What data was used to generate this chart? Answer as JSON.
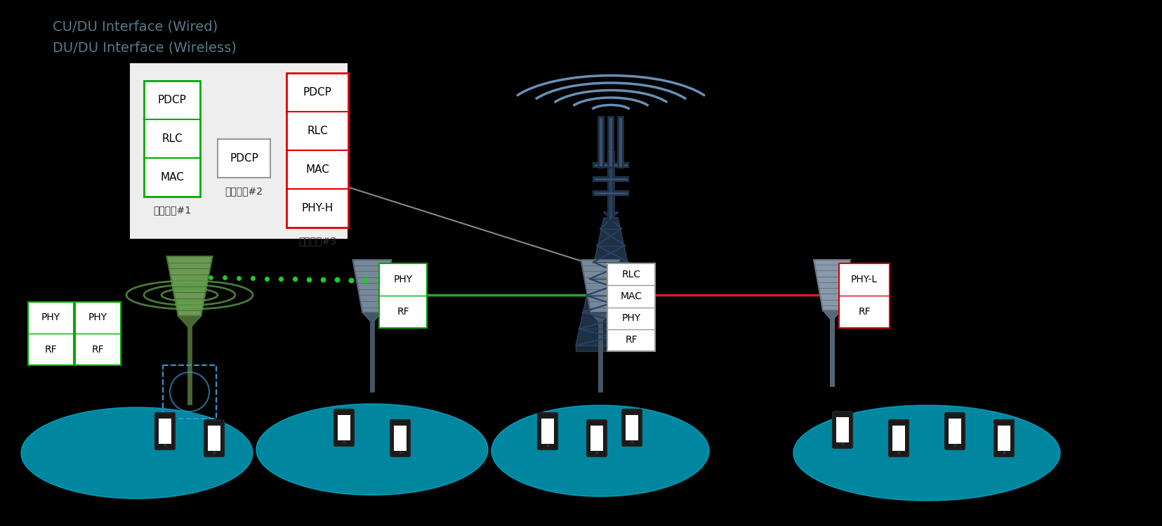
{
  "legend_line1": "CU/DU Interface (Wired)",
  "legend_line2": "DU/DU Interface (Wireless)",
  "legend_color": "#5a7a8a",
  "bg_color": "#000000",
  "gray_panel_bg": "#f0f0f0",
  "protocol_box1_items": [
    "PDCP",
    "RLC",
    "MAC"
  ],
  "protocol_box1_color": "#00aa00",
  "protocol_box1_label": "기능분할#1",
  "protocol_box2_items": [
    "PDCP"
  ],
  "protocol_box2_color": "#999999",
  "protocol_box2_label": "기능분할#2",
  "protocol_box3_items": [
    "PDCP",
    "RLC",
    "MAC",
    "PHY-H"
  ],
  "protocol_box3_color": "#dd0000",
  "protocol_box3_label": "기능분할#3",
  "tower_color": "#2a3f5a",
  "tower_wave_color": "#7aaac8",
  "cyan_color": "#00c8e8",
  "green_color": "#44aa44",
  "left_antenna_color": "#5a8844",
  "gray_antenna_color": "#778899",
  "line_green": "#22aa22",
  "line_blue": "#3355bb",
  "line_red": "#cc2222",
  "line_gray": "#777777"
}
